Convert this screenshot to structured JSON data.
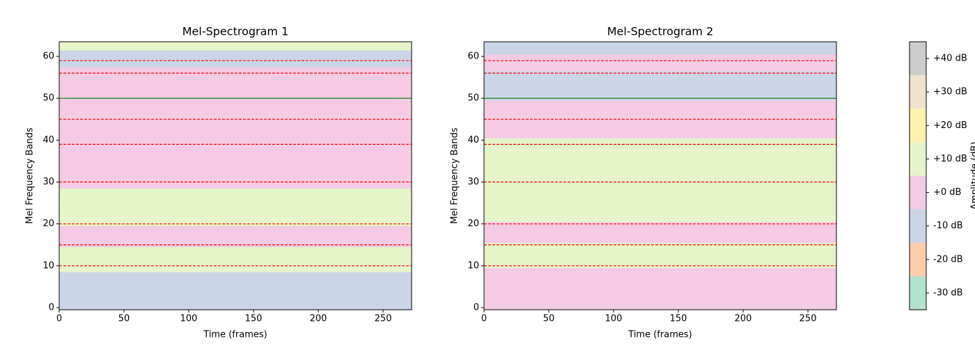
{
  "chart_data": [
    {
      "type": "heatmap",
      "title": "Mel-Spectrogram 1",
      "xlabel": "Time (frames)",
      "ylabel": "Mel Frequency Bands",
      "xlim": [
        0,
        272
      ],
      "ylim": [
        -0.5,
        63.5
      ],
      "xticks": [
        0,
        50,
        100,
        150,
        200,
        250
      ],
      "yticks": [
        0,
        10,
        20,
        30,
        40,
        50,
        60
      ],
      "z": [
        -10,
        -10,
        -10,
        -10,
        -10,
        -10,
        -10,
        -10,
        -10,
        10,
        10,
        10,
        10,
        10,
        10,
        0,
        0,
        0,
        0,
        0,
        10,
        10,
        10,
        10,
        10,
        10,
        10,
        10,
        10,
        0,
        0,
        0,
        0,
        0,
        0,
        0,
        0,
        0,
        0,
        0,
        0,
        0,
        0,
        0,
        0,
        0,
        0,
        0,
        0,
        0,
        0,
        0,
        0,
        0,
        0,
        0,
        0,
        0,
        -10,
        -10,
        -10,
        -10,
        10,
        10
      ],
      "hlines": [
        {
          "value": 10,
          "color": "#ff0000",
          "dashed": true
        },
        {
          "value": 15,
          "color": "#ff0000",
          "dashed": true
        },
        {
          "value": 20,
          "color": "#ff0000",
          "dashed": true
        },
        {
          "value": 30,
          "color": "#ff0000",
          "dashed": true
        },
        {
          "value": 39,
          "color": "#ff0000",
          "dashed": true
        },
        {
          "value": 45,
          "color": "#ff0000",
          "dashed": true
        },
        {
          "value": 50,
          "color": "#008000",
          "dashed": false
        },
        {
          "value": 56,
          "color": "#ff0000",
          "dashed": true
        },
        {
          "value": 59,
          "color": "#ff0000",
          "dashed": true
        }
      ]
    },
    {
      "type": "heatmap",
      "title": "Mel-Spectrogram 2",
      "xlabel": "Time (frames)",
      "ylabel": "Mel Frequency Bands",
      "xlim": [
        0,
        272
      ],
      "ylim": [
        -0.5,
        63.5
      ],
      "xticks": [
        0,
        50,
        100,
        150,
        200,
        250
      ],
      "yticks": [
        0,
        10,
        20,
        30,
        40,
        50,
        60
      ],
      "z": [
        0,
        0,
        0,
        0,
        0,
        0,
        0,
        0,
        0,
        0,
        10,
        10,
        10,
        10,
        10,
        10,
        0,
        0,
        0,
        0,
        0,
        10,
        10,
        10,
        10,
        10,
        10,
        10,
        10,
        10,
        10,
        10,
        10,
        10,
        10,
        10,
        10,
        10,
        10,
        10,
        10,
        0,
        0,
        0,
        0,
        0,
        0,
        0,
        0,
        0,
        -10,
        -10,
        -10,
        -10,
        -10,
        -10,
        -10,
        0,
        0,
        0,
        0,
        -10,
        -10,
        -10
      ],
      "hlines": [
        {
          "value": 10,
          "color": "#ff0000",
          "dashed": true
        },
        {
          "value": 15,
          "color": "#ff0000",
          "dashed": true
        },
        {
          "value": 20,
          "color": "#ff0000",
          "dashed": true
        },
        {
          "value": 30,
          "color": "#ff0000",
          "dashed": true
        },
        {
          "value": 39,
          "color": "#ff0000",
          "dashed": true
        },
        {
          "value": 45,
          "color": "#ff0000",
          "dashed": true
        },
        {
          "value": 50,
          "color": "#008000",
          "dashed": false
        },
        {
          "value": 56,
          "color": "#ff0000",
          "dashed": true
        },
        {
          "value": 59,
          "color": "#ff0000",
          "dashed": true
        }
      ]
    },
    {
      "type": "colorbar",
      "label": "Amplitude (dB)",
      "ylim": [
        -35,
        45
      ],
      "yticks": [
        {
          "value": -30,
          "label": "-30 dB"
        },
        {
          "value": -20,
          "label": "-20 dB"
        },
        {
          "value": -10,
          "label": "-10 dB"
        },
        {
          "value": 0,
          "label": "+0 dB"
        },
        {
          "value": 10,
          "label": "+10 dB"
        },
        {
          "value": 20,
          "label": "+20 dB"
        },
        {
          "value": 30,
          "label": "+30 dB"
        },
        {
          "value": 40,
          "label": "+40 dB"
        }
      ],
      "colors": [
        "#b3e2cd",
        "#fdcdac",
        "#cbd5e8",
        "#f4cae4",
        "#e6f5c9",
        "#fff2ae",
        "#f1e2cc",
        "#cccccc"
      ]
    }
  ]
}
